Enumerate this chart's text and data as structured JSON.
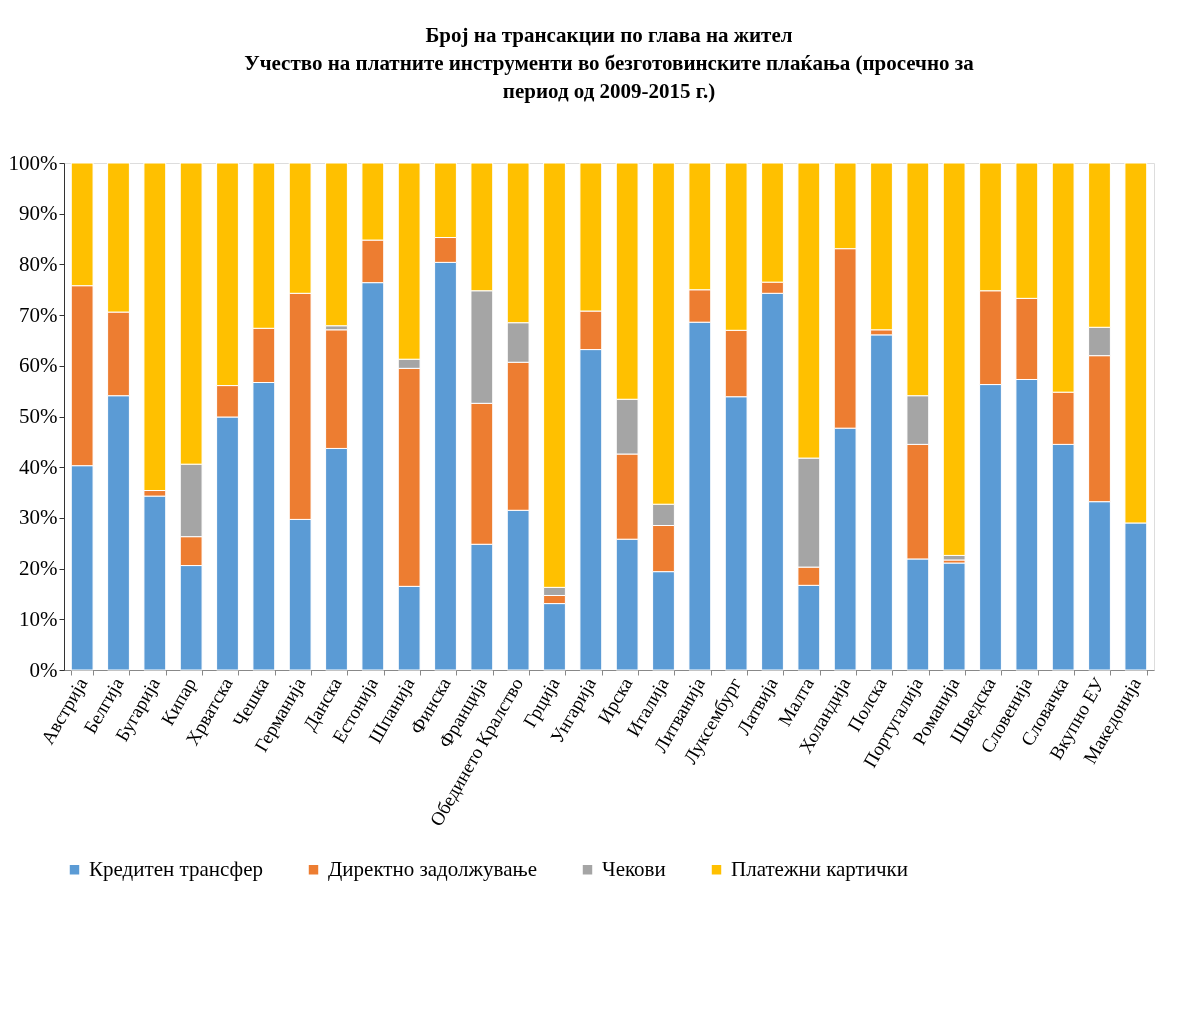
{
  "chart_data": {
    "type": "bar",
    "stacked": true,
    "title": [
      "Број на трансакции по глава на жител",
      "Учество на платните инструменти  во безготовинските плаќања (просечно за",
      "период од 2009-2015 г.)"
    ],
    "categories": [
      "Австрија",
      "Белгија",
      "Бугарија",
      "Кипар",
      "Хрватска",
      "Чешка",
      "Германија",
      "Данска",
      "Естонија",
      "Шпанија",
      "Финска",
      "Франција",
      "Обединето Кралство",
      "Грција",
      "Унгарија",
      "Ирска",
      "Италија",
      "Литванија",
      "Луксембург",
      "Латвија",
      "Малта",
      "Холандија",
      "Полска",
      "Португалија",
      "Романија",
      "Шведска",
      "Словенија",
      "Словачка",
      "Вкупно ЕУ",
      "Македонија"
    ],
    "series": [
      {
        "name": "Кредитен трансфер",
        "color": "#5b9bd5",
        "values": [
          40.3,
          54.1,
          34.3,
          20.6,
          49.9,
          56.7,
          29.7,
          43.7,
          76.4,
          16.5,
          80.4,
          24.8,
          31.5,
          13.1,
          63.2,
          25.8,
          19.4,
          68.6,
          53.9,
          74.3,
          16.7,
          47.7,
          66.1,
          21.9,
          21.1,
          56.3,
          57.3,
          44.5,
          33.2,
          29.0
        ]
      },
      {
        "name": "Директно задолжување",
        "color": "#ed7d31",
        "values": [
          35.5,
          16.5,
          1.1,
          5.7,
          6.2,
          10.7,
          44.6,
          23.4,
          8.4,
          43.0,
          4.9,
          27.8,
          29.2,
          1.6,
          7.6,
          16.8,
          9.1,
          6.4,
          13.1,
          2.2,
          3.6,
          35.4,
          1.0,
          22.6,
          0.6,
          18.5,
          16.0,
          10.3,
          28.8,
          0
        ]
      },
      {
        "name": "Чекови",
        "color": "#a5a5a5",
        "values": [
          0,
          0,
          0,
          14.3,
          0,
          0,
          0,
          0.8,
          0,
          1.8,
          0,
          22.2,
          7.8,
          1.6,
          0,
          10.8,
          4.2,
          0,
          0,
          0,
          21.5,
          0,
          0,
          9.6,
          0.9,
          0,
          0,
          0,
          5.6,
          0
        ]
      },
      {
        "name": "Платежни картички",
        "color": "#ffc000",
        "values": [
          24.2,
          29.4,
          64.6,
          59.4,
          43.9,
          32.6,
          25.7,
          32.1,
          15.2,
          38.7,
          14.7,
          25.2,
          31.5,
          83.7,
          29.2,
          46.6,
          67.3,
          25.0,
          33.0,
          23.5,
          58.2,
          16.9,
          32.9,
          45.9,
          77.4,
          25.2,
          26.7,
          45.2,
          32.4,
          71.0
        ]
      }
    ],
    "ylim": [
      0,
      100
    ],
    "yticks": [
      {
        "value": 0,
        "label": "0%"
      },
      {
        "value": 10,
        "label": "10%"
      },
      {
        "value": 20,
        "label": "20%"
      },
      {
        "value": 30,
        "label": "30%"
      },
      {
        "value": 40,
        "label": "40%"
      },
      {
        "value": 50,
        "label": "50%"
      },
      {
        "value": 60,
        "label": "60%"
      },
      {
        "value": 70,
        "label": "70%"
      },
      {
        "value": 80,
        "label": "80%"
      },
      {
        "value": 90,
        "label": "90%"
      },
      {
        "value": 100,
        "label": "100%"
      }
    ],
    "legend": "bottom"
  }
}
